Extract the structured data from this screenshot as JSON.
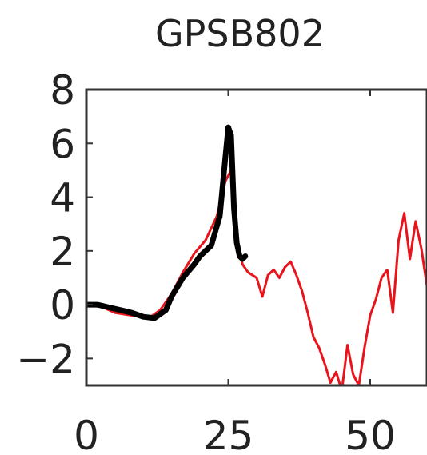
{
  "chart_data": {
    "type": "line",
    "title": "GPSB802",
    "xlabel": "",
    "ylabel": "",
    "xlim": [
      0,
      60
    ],
    "ylim": [
      -3,
      8
    ],
    "x_ticks": [
      0,
      25,
      50
    ],
    "x_tick_labels": [
      "0",
      "25",
      "50"
    ],
    "y_ticks": [
      -2,
      0,
      2,
      4,
      6,
      8
    ],
    "y_tick_labels": [
      "−2",
      "0",
      "2",
      "4",
      "6",
      "8"
    ],
    "grid": false,
    "series": [
      {
        "color": "#e8141c",
        "line_width": 3,
        "x": [
          0,
          3,
          5,
          8,
          11,
          13,
          15,
          17,
          19,
          21,
          23,
          24.5,
          25.5,
          26.5,
          27.5,
          28.5,
          30,
          31,
          32,
          33,
          34,
          35,
          36,
          37,
          38,
          39,
          40,
          41,
          42,
          43,
          44,
          45,
          46,
          47,
          48,
          49,
          50,
          51,
          52,
          53,
          54,
          55,
          56,
          57,
          58,
          59,
          60
        ],
        "y": [
          0,
          -0.1,
          -0.3,
          -0.4,
          -0.5,
          -0.2,
          0.4,
          1.2,
          1.9,
          2.4,
          3.3,
          4.6,
          5.0,
          2.6,
          1.5,
          1.2,
          1.0,
          0.3,
          1.1,
          1.3,
          1.0,
          1.4,
          1.6,
          1.1,
          0.5,
          -0.3,
          -1.2,
          -1.6,
          -2.2,
          -2.9,
          -2.5,
          -3.2,
          -1.5,
          -2.6,
          -3.0,
          -1.6,
          -0.4,
          0.2,
          1.0,
          1.3,
          -0.3,
          2.4,
          3.4,
          1.7,
          3.1,
          2.1,
          0.7
        ]
      },
      {
        "color": "#000000",
        "line_width": 7,
        "x": [
          0,
          2,
          4,
          6,
          8,
          10,
          12,
          14,
          15,
          17,
          19,
          20,
          22,
          23.5,
          24.5,
          25,
          25.5,
          26,
          26.5,
          27,
          27.5,
          28
        ],
        "y": [
          0,
          0,
          -0.1,
          -0.2,
          -0.3,
          -0.45,
          -0.5,
          -0.2,
          0.3,
          1.0,
          1.5,
          1.8,
          2.2,
          3.3,
          5.5,
          6.6,
          6.3,
          3.6,
          2.3,
          1.8,
          1.7,
          1.8
        ]
      }
    ]
  }
}
